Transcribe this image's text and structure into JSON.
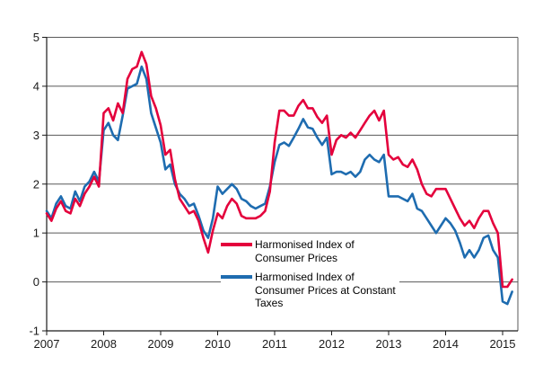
{
  "colors": {
    "red": "#e4003c",
    "blue": "#1e6cb0",
    "grid": "#595959",
    "axis": "#1a1a1a",
    "text": "#1a1a1a",
    "background": "#ffffff"
  },
  "legend": {
    "item1": {
      "line1": "Harmonised Index of",
      "line2": "Consumer Prices"
    },
    "item2": {
      "line1": "Harmonised Index of",
      "line2": "Consumer Prices at Constant",
      "line3": "Taxes"
    }
  },
  "chart_data": {
    "type": "line",
    "x_unit": "month",
    "x_start": "2007-01",
    "x_end": "2015-03",
    "ylim": [
      -1,
      5
    ],
    "y_ticks": [
      "5",
      "4",
      "3",
      "2",
      "1",
      "0",
      "-1"
    ],
    "x_ticks": [
      "2007",
      "2008",
      "2009",
      "2010",
      "2011",
      "2012",
      "2013",
      "2014",
      "2015"
    ],
    "grid": "horizontal",
    "legend_position": "inside-bottom-center",
    "series": [
      {
        "name": "Harmonised Index of Consumer Prices",
        "color": "#e4003c",
        "values": [
          1.4,
          1.25,
          1.5,
          1.65,
          1.45,
          1.4,
          1.7,
          1.55,
          1.8,
          1.95,
          2.15,
          1.95,
          3.45,
          3.55,
          3.3,
          3.65,
          3.45,
          4.15,
          4.35,
          4.4,
          4.7,
          4.45,
          3.8,
          3.55,
          3.2,
          2.6,
          2.7,
          2.1,
          1.7,
          1.55,
          1.4,
          1.45,
          1.25,
          0.9,
          0.6,
          1.05,
          1.4,
          1.3,
          1.55,
          1.7,
          1.6,
          1.35,
          1.3,
          1.3,
          1.3,
          1.35,
          1.45,
          1.85,
          2.85,
          3.5,
          3.5,
          3.4,
          3.4,
          3.6,
          3.72,
          3.55,
          3.55,
          3.37,
          3.25,
          3.4,
          2.6,
          2.9,
          3.0,
          2.95,
          3.05,
          2.95,
          3.1,
          3.25,
          3.4,
          3.5,
          3.3,
          3.5,
          2.6,
          2.5,
          2.55,
          2.4,
          2.35,
          2.5,
          2.3,
          2.0,
          1.8,
          1.75,
          1.9,
          1.9,
          1.9,
          1.7,
          1.5,
          1.3,
          1.15,
          1.25,
          1.1,
          1.3,
          1.45,
          1.45,
          1.2,
          1.0,
          -0.1,
          -0.1,
          0.05
        ]
      },
      {
        "name": "Harmonised Index of Consumer Prices at Constant Taxes",
        "color": "#1e6cb0",
        "values": [
          1.45,
          1.3,
          1.6,
          1.75,
          1.55,
          1.5,
          1.85,
          1.65,
          1.95,
          2.05,
          2.25,
          2.05,
          3.1,
          3.25,
          3.0,
          2.9,
          3.4,
          3.95,
          4.0,
          4.05,
          4.4,
          4.15,
          3.45,
          3.15,
          2.85,
          2.3,
          2.4,
          2.0,
          1.8,
          1.7,
          1.55,
          1.6,
          1.35,
          1.05,
          0.9,
          1.3,
          1.95,
          1.8,
          1.9,
          2.0,
          1.9,
          1.7,
          1.65,
          1.55,
          1.5,
          1.55,
          1.6,
          1.95,
          2.45,
          2.8,
          2.85,
          2.78,
          2.95,
          3.13,
          3.33,
          3.16,
          3.13,
          2.95,
          2.8,
          2.95,
          2.2,
          2.25,
          2.25,
          2.2,
          2.25,
          2.15,
          2.25,
          2.5,
          2.6,
          2.5,
          2.45,
          2.6,
          1.75,
          1.75,
          1.75,
          1.7,
          1.65,
          1.8,
          1.5,
          1.45,
          1.3,
          1.15,
          1.0,
          1.15,
          1.3,
          1.2,
          1.05,
          0.8,
          0.5,
          0.65,
          0.5,
          0.65,
          0.9,
          0.95,
          0.65,
          0.5,
          -0.4,
          -0.45,
          -0.2
        ]
      }
    ]
  }
}
